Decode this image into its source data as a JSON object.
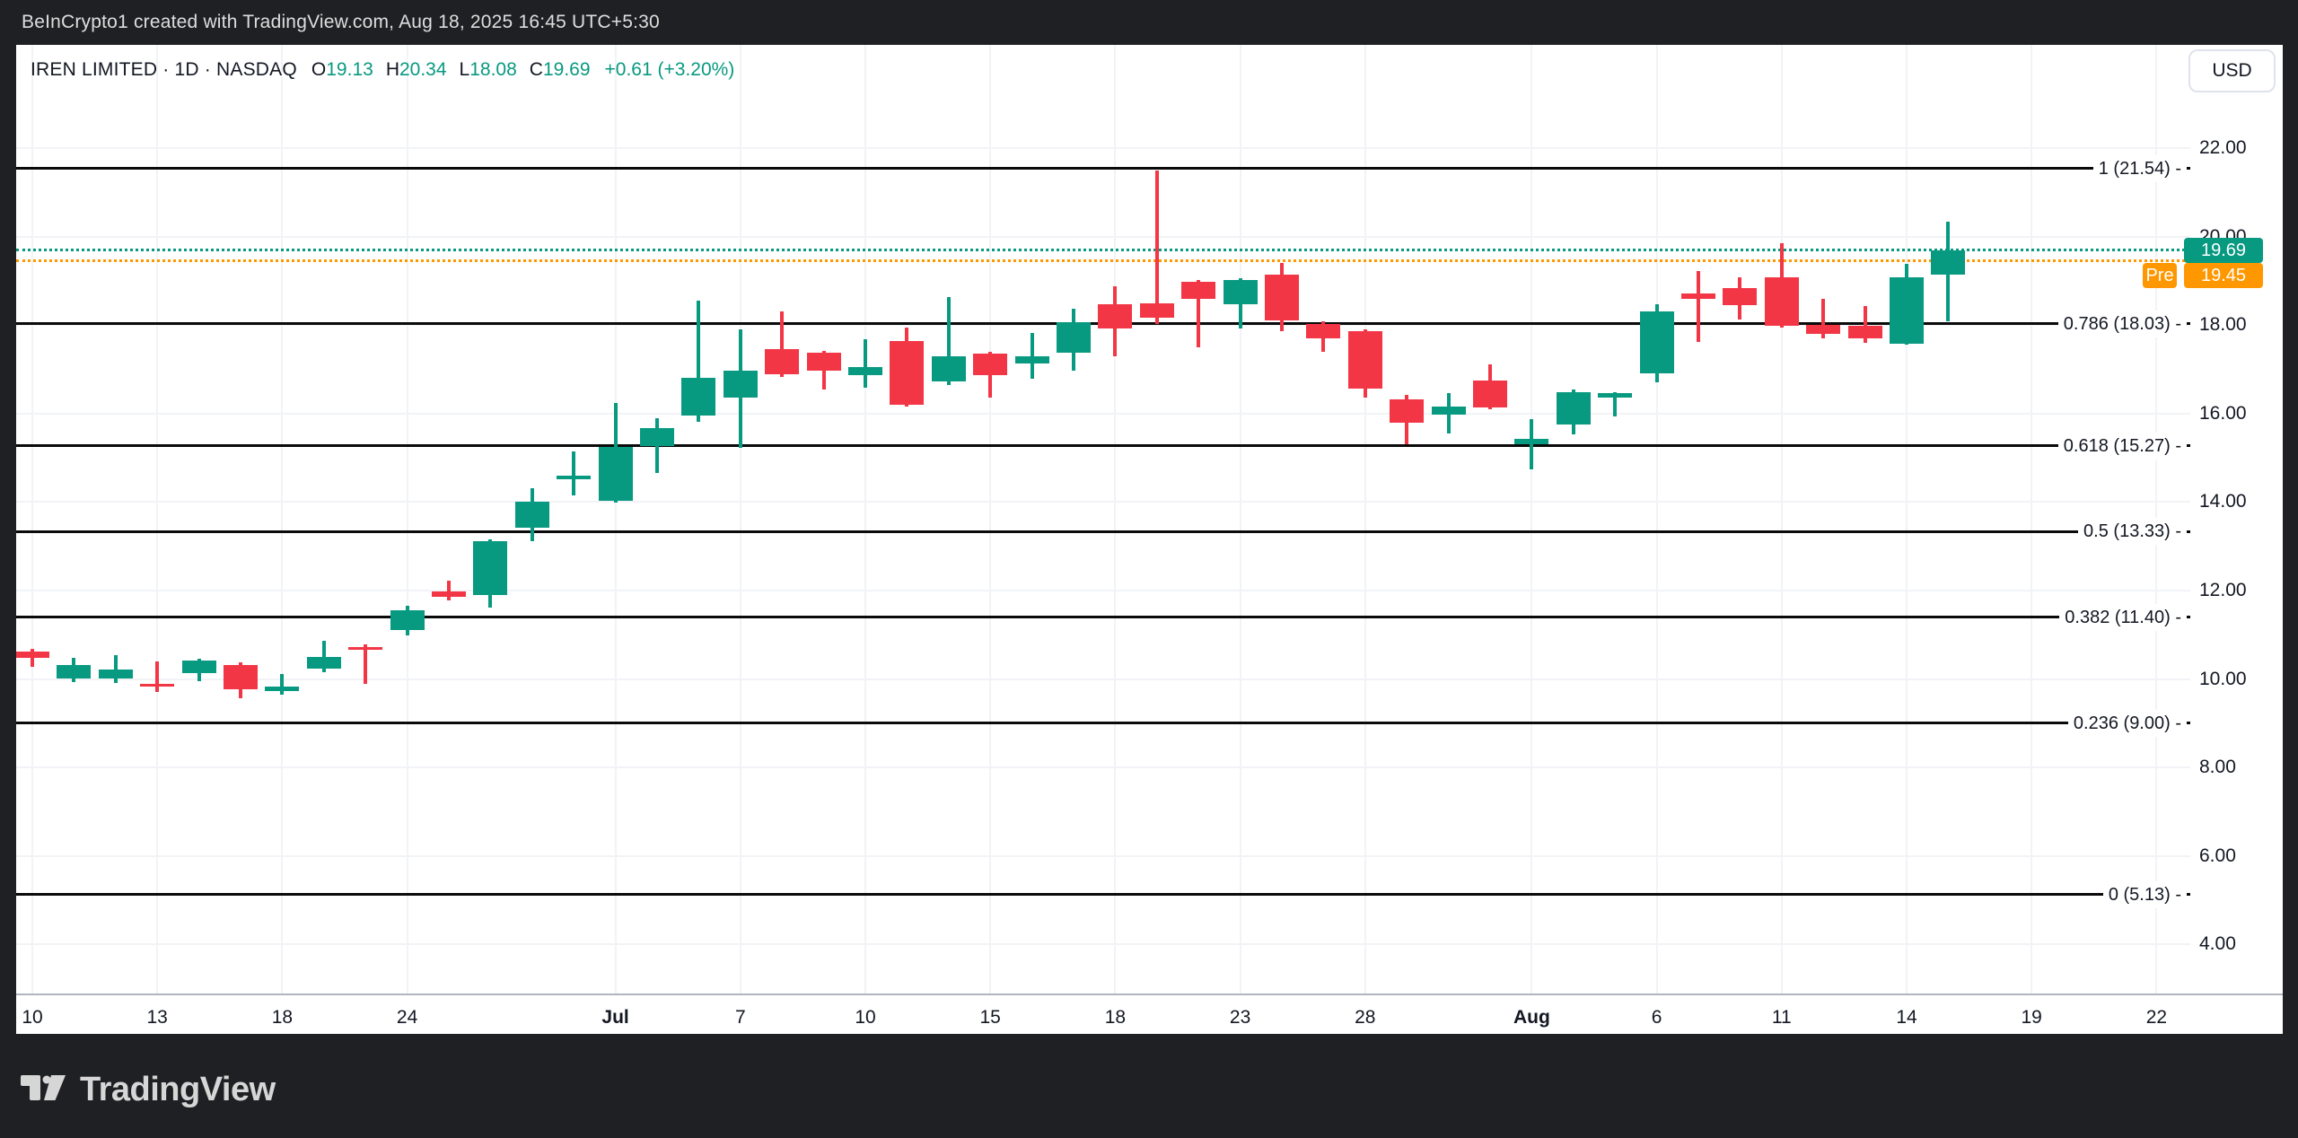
{
  "top_bar": {
    "attribution": "BeInCrypto1 created with TradingView.com, Aug 18, 2025 16:45 UTC+5:30"
  },
  "header": {
    "title": "IREN LIMITED · 1D · NASDAQ",
    "ohlc": [
      {
        "label": "O",
        "value": "19.13"
      },
      {
        "label": "H",
        "value": "20.34"
      },
      {
        "label": "L",
        "value": "18.08"
      },
      {
        "label": "C",
        "value": "19.69"
      }
    ],
    "change": "+0.61 (+3.20%)",
    "currency_button": "USD"
  },
  "footer": {
    "brand": "TradingView"
  },
  "colors": {
    "up": "#089981",
    "down": "#f23645",
    "last_price_line": "#089981",
    "premarket_line": "#ff9800",
    "fib_line": "#0a0a0a",
    "grid": "#f1f3f6",
    "axis_text": "#131722",
    "frame_bg": "#1f2023"
  },
  "chart_data": {
    "type": "candlestick",
    "symbol": "IREN LIMITED",
    "interval": "1D",
    "exchange": "NASDAQ",
    "ylim": [
      2.9,
      23.3
    ],
    "grid": "on",
    "y_axis": {
      "ticks": [
        {
          "v": 22,
          "label": "22.00"
        },
        {
          "v": 20,
          "label": "20.00"
        },
        {
          "v": 18,
          "label": "18.00"
        },
        {
          "v": 16,
          "label": "16.00"
        },
        {
          "v": 14,
          "label": "14.00"
        },
        {
          "v": 12,
          "label": "12.00"
        },
        {
          "v": 10,
          "label": "10.00"
        },
        {
          "v": 8,
          "label": "8.00"
        },
        {
          "v": 6,
          "label": "6.00"
        },
        {
          "v": 4,
          "label": "4.00"
        }
      ]
    },
    "x_axis": {
      "ticks": [
        {
          "i": 0,
          "label": "10",
          "bold": false
        },
        {
          "i": 3,
          "label": "13",
          "bold": false
        },
        {
          "i": 6,
          "label": "18",
          "bold": false
        },
        {
          "i": 9,
          "label": "24",
          "bold": false
        },
        {
          "i": 14,
          "label": "Jul",
          "bold": true
        },
        {
          "i": 17,
          "label": "7",
          "bold": false
        },
        {
          "i": 20,
          "label": "10",
          "bold": false
        },
        {
          "i": 23,
          "label": "15",
          "bold": false
        },
        {
          "i": 26,
          "label": "18",
          "bold": false
        },
        {
          "i": 29,
          "label": "23",
          "bold": false
        },
        {
          "i": 32,
          "label": "28",
          "bold": false
        },
        {
          "i": 36,
          "label": "Aug",
          "bold": true
        },
        {
          "i": 39,
          "label": "6",
          "bold": false
        },
        {
          "i": 42,
          "label": "11",
          "bold": false
        },
        {
          "i": 45,
          "label": "14",
          "bold": false
        },
        {
          "i": 48,
          "label": "19",
          "bold": false
        },
        {
          "i": 51,
          "label": "22",
          "bold": false
        }
      ]
    },
    "fib_levels": [
      {
        "ratio": "1",
        "price": 21.54,
        "label": "1 (21.54) -"
      },
      {
        "ratio": "0.786",
        "price": 18.03,
        "label": "0.786 (18.03) -"
      },
      {
        "ratio": "0.618",
        "price": 15.27,
        "label": "0.618 (15.27) -"
      },
      {
        "ratio": "0.5",
        "price": 13.33,
        "label": "0.5 (13.33) -"
      },
      {
        "ratio": "0.382",
        "price": 11.4,
        "label": "0.382 (11.40) -"
      },
      {
        "ratio": "0.236",
        "price": 9.0,
        "label": "0.236 (9.00) -"
      },
      {
        "ratio": "0",
        "price": 5.13,
        "label": "0 (5.13) -"
      }
    ],
    "last_price": {
      "value": "19.69",
      "price": 19.69
    },
    "premarket": {
      "label": "Pre",
      "value": "19.45",
      "price": 19.45
    },
    "candles": [
      {
        "d": "Jun 10",
        "o": 10.62,
        "h": 10.68,
        "l": 10.27,
        "c": 10.48
      },
      {
        "d": "Jun 11",
        "o": 10.01,
        "h": 10.48,
        "l": 9.93,
        "c": 10.32
      },
      {
        "d": "Jun 12",
        "o": 10.01,
        "h": 10.54,
        "l": 9.91,
        "c": 10.21
      },
      {
        "d": "Jun 13",
        "o": 9.9,
        "h": 10.4,
        "l": 9.71,
        "c": 9.86
      },
      {
        "d": "Jun 16",
        "o": 10.14,
        "h": 10.45,
        "l": 9.95,
        "c": 10.42
      },
      {
        "d": "Jun 17",
        "o": 10.32,
        "h": 10.38,
        "l": 9.56,
        "c": 9.77
      },
      {
        "d": "Jun 18",
        "o": 9.73,
        "h": 10.12,
        "l": 9.65,
        "c": 9.83
      },
      {
        "d": "Jun 20",
        "o": 10.24,
        "h": 10.87,
        "l": 10.15,
        "c": 10.5
      },
      {
        "d": "Jun 23",
        "o": 10.72,
        "h": 10.79,
        "l": 9.89,
        "c": 10.68
      },
      {
        "d": "Jun 24",
        "o": 11.11,
        "h": 11.65,
        "l": 10.98,
        "c": 11.55
      },
      {
        "d": "Jun 25",
        "o": 11.98,
        "h": 12.23,
        "l": 11.78,
        "c": 11.86
      },
      {
        "d": "Jun 26",
        "o": 11.9,
        "h": 13.15,
        "l": 11.62,
        "c": 13.12
      },
      {
        "d": "Jun 27",
        "o": 13.42,
        "h": 14.31,
        "l": 13.12,
        "c": 14.01
      },
      {
        "d": "Jun 30",
        "o": 14.52,
        "h": 15.15,
        "l": 14.15,
        "c": 14.6
      },
      {
        "d": "Jul 1",
        "o": 14.03,
        "h": 16.24,
        "l": 13.98,
        "c": 15.25
      },
      {
        "d": "Jul 2",
        "o": 15.27,
        "h": 15.9,
        "l": 14.66,
        "c": 15.67
      },
      {
        "d": "Jul 3",
        "o": 15.96,
        "h": 18.55,
        "l": 15.81,
        "c": 16.81
      },
      {
        "d": "Jul 7",
        "o": 16.36,
        "h": 17.9,
        "l": 15.22,
        "c": 16.97
      },
      {
        "d": "Jul 8",
        "o": 17.46,
        "h": 18.31,
        "l": 16.83,
        "c": 16.89
      },
      {
        "d": "Jul 9",
        "o": 17.37,
        "h": 17.42,
        "l": 16.54,
        "c": 16.97
      },
      {
        "d": "Jul 10",
        "o": 16.87,
        "h": 17.68,
        "l": 16.58,
        "c": 17.05
      },
      {
        "d": "Jul 11",
        "o": 17.64,
        "h": 17.95,
        "l": 16.15,
        "c": 16.2
      },
      {
        "d": "Jul 14",
        "o": 16.72,
        "h": 18.63,
        "l": 16.65,
        "c": 17.29
      },
      {
        "d": "Jul 15",
        "o": 17.35,
        "h": 17.4,
        "l": 16.36,
        "c": 16.87
      },
      {
        "d": "Jul 16",
        "o": 17.13,
        "h": 17.82,
        "l": 16.79,
        "c": 17.29
      },
      {
        "d": "Jul 17",
        "o": 17.37,
        "h": 18.37,
        "l": 16.97,
        "c": 18.06
      },
      {
        "d": "Jul 18",
        "o": 18.48,
        "h": 18.87,
        "l": 17.29,
        "c": 17.92
      },
      {
        "d": "Jul 21",
        "o": 18.49,
        "h": 21.5,
        "l": 18.03,
        "c": 18.17
      },
      {
        "d": "Jul 22",
        "o": 18.98,
        "h": 19.02,
        "l": 17.5,
        "c": 18.59
      },
      {
        "d": "Jul 23",
        "o": 18.47,
        "h": 19.06,
        "l": 17.93,
        "c": 19.02
      },
      {
        "d": "Jul 24",
        "o": 19.14,
        "h": 19.4,
        "l": 17.87,
        "c": 18.1
      },
      {
        "d": "Jul 25",
        "o": 18.02,
        "h": 18.09,
        "l": 17.4,
        "c": 17.7
      },
      {
        "d": "Jul 28",
        "o": 17.86,
        "h": 17.9,
        "l": 16.36,
        "c": 16.56
      },
      {
        "d": "Jul 29",
        "o": 16.32,
        "h": 16.42,
        "l": 15.3,
        "c": 15.79
      },
      {
        "d": "Jul 30",
        "o": 15.98,
        "h": 16.46,
        "l": 15.55,
        "c": 16.16
      },
      {
        "d": "Jul 31",
        "o": 16.75,
        "h": 17.11,
        "l": 16.1,
        "c": 16.14
      },
      {
        "d": "Aug 1",
        "o": 15.3,
        "h": 15.87,
        "l": 14.74,
        "c": 15.42
      },
      {
        "d": "Aug 4",
        "o": 15.75,
        "h": 16.54,
        "l": 15.53,
        "c": 16.48
      },
      {
        "d": "Aug 5",
        "o": 16.36,
        "h": 16.48,
        "l": 15.94,
        "c": 16.46
      },
      {
        "d": "Aug 6",
        "o": 16.91,
        "h": 18.47,
        "l": 16.71,
        "c": 18.31
      },
      {
        "d": "Aug 7",
        "o": 18.72,
        "h": 19.23,
        "l": 17.62,
        "c": 18.6
      },
      {
        "d": "Aug 8",
        "o": 18.84,
        "h": 19.08,
        "l": 18.12,
        "c": 18.45
      },
      {
        "d": "Aug 11",
        "o": 19.08,
        "h": 19.84,
        "l": 17.95,
        "c": 17.99
      },
      {
        "d": "Aug 12",
        "o": 18.0,
        "h": 18.59,
        "l": 17.7,
        "c": 17.8
      },
      {
        "d": "Aug 13",
        "o": 17.98,
        "h": 18.43,
        "l": 17.6,
        "c": 17.7
      },
      {
        "d": "Aug 14",
        "o": 17.58,
        "h": 19.38,
        "l": 17.56,
        "c": 19.08
      },
      {
        "d": "Aug 15",
        "o": 19.13,
        "h": 20.34,
        "l": 18.08,
        "c": 19.69
      }
    ]
  }
}
